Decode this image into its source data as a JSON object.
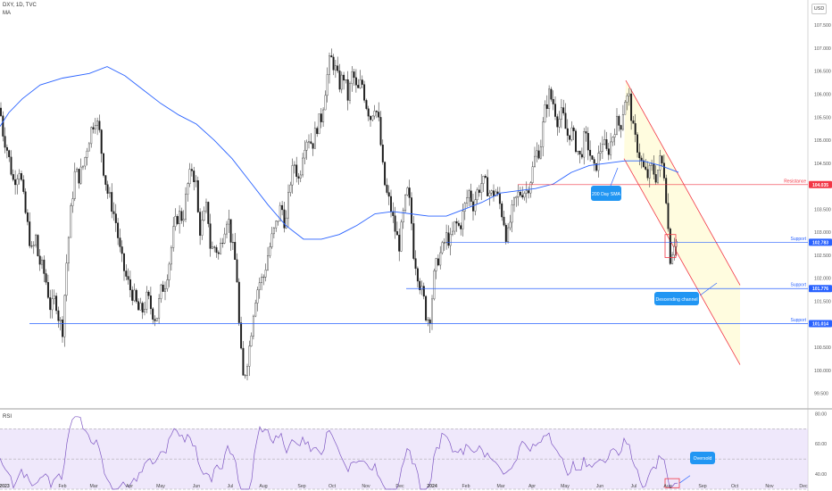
{
  "header": {
    "symbol": "DXY, 1D, TVC",
    "indicator": "MA"
  },
  "currency": "USD",
  "rsi_label": "RSI",
  "chart_data": [
    {
      "type": "candlestick",
      "title": "DXY, 1D, TVC",
      "y_ticks": [
        "107.500",
        "107.000",
        "106.500",
        "106.000",
        "105.500",
        "105.000",
        "104.500",
        "104.000",
        "103.500",
        "103.000",
        "102.500",
        "102.000",
        "101.500",
        "101.000",
        "100.500",
        "100.000",
        "99.500"
      ],
      "ylim": [
        99.2,
        107.95
      ],
      "x_ticks": [
        "2023",
        "Feb",
        "Mar",
        "Apr",
        "May",
        "Jun",
        "Jul",
        "Aug",
        "Sep",
        "Oct",
        "Nov",
        "Dec",
        "2024",
        "Feb",
        "Mar",
        "Apr",
        "May",
        "Jun",
        "Jul",
        "Aug",
        "Sep",
        "Oct",
        "Nov",
        "Dec"
      ],
      "close_path": [
        [
          0,
          105.7
        ],
        [
          3,
          105.2
        ],
        [
          8,
          104.8
        ],
        [
          15,
          104.1
        ],
        [
          22,
          104.4
        ],
        [
          27,
          103.6
        ],
        [
          32,
          103.0
        ],
        [
          36,
          102.5
        ],
        [
          40,
          102.9
        ],
        [
          43,
          102.4
        ],
        [
          48,
          102.2
        ],
        [
          52,
          101.9
        ],
        [
          57,
          101.3
        ],
        [
          62,
          101.6
        ],
        [
          66,
          101.1
        ],
        [
          70,
          100.9
        ],
        [
          74,
          102.2
        ],
        [
          79,
          103.4
        ],
        [
          84,
          104.3
        ],
        [
          89,
          104.2
        ],
        [
          94,
          104.5
        ],
        [
          98,
          104.9
        ],
        [
          103,
          105.3
        ],
        [
          107,
          105.5
        ],
        [
          112,
          105.1
        ],
        [
          115,
          104.5
        ],
        [
          120,
          103.9
        ],
        [
          125,
          103.6
        ],
        [
          130,
          103.2
        ],
        [
          135,
          102.5
        ],
        [
          140,
          102.1
        ],
        [
          145,
          101.8
        ],
        [
          150,
          101.6
        ],
        [
          155,
          101.3
        ],
        [
          160,
          101.3
        ],
        [
          165,
          101.6
        ],
        [
          170,
          101.3
        ],
        [
          175,
          101.1
        ],
        [
          180,
          101.7
        ],
        [
          185,
          101.9
        ],
        [
          190,
          102.4
        ],
        [
          195,
          103.1
        ],
        [
          200,
          103.4
        ],
        [
          205,
          103.3
        ],
        [
          210,
          104.0
        ],
        [
          215,
          104.4
        ],
        [
          220,
          104.0
        ],
        [
          223,
          103.0
        ],
        [
          227,
          103.2
        ],
        [
          232,
          103.6
        ],
        [
          236,
          102.6
        ],
        [
          241,
          102.7
        ],
        [
          245,
          102.5
        ],
        [
          250,
          103.0
        ],
        [
          255,
          103.4
        ],
        [
          260,
          102.7
        ],
        [
          265,
          102.2
        ],
        [
          268,
          100.9
        ],
        [
          272,
          99.8
        ],
        [
          275,
          100.0
        ],
        [
          280,
          100.6
        ],
        [
          285,
          101.5
        ],
        [
          290,
          101.9
        ],
        [
          295,
          102.0
        ],
        [
          300,
          102.5
        ],
        [
          305,
          102.9
        ],
        [
          310,
          103.2
        ],
        [
          315,
          103.6
        ],
        [
          320,
          103.1
        ],
        [
          325,
          104.1
        ],
        [
          330,
          104.5
        ],
        [
          335,
          104.1
        ],
        [
          340,
          104.9
        ],
        [
          345,
          105.1
        ],
        [
          350,
          104.9
        ],
        [
          355,
          105.3
        ],
        [
          360,
          105.5
        ],
        [
          365,
          106.2
        ],
        [
          370,
          106.8
        ],
        [
          375,
          106.6
        ],
        [
          380,
          106.2
        ],
        [
          385,
          106.4
        ],
        [
          390,
          105.9
        ],
        [
          395,
          106.5
        ],
        [
          400,
          106.0
        ],
        [
          405,
          106.3
        ],
        [
          410,
          105.8
        ],
        [
          415,
          105.5
        ],
        [
          420,
          105.8
        ],
        [
          425,
          105.3
        ],
        [
          428,
          104.5
        ],
        [
          432,
          103.9
        ],
        [
          437,
          103.6
        ],
        [
          442,
          103.1
        ],
        [
          447,
          102.7
        ],
        [
          452,
          103.4
        ],
        [
          456,
          103.9
        ],
        [
          460,
          103.5
        ],
        [
          463,
          102.6
        ],
        [
          467,
          102.2
        ],
        [
          471,
          101.8
        ],
        [
          475,
          101.5
        ],
        [
          478,
          101.1
        ],
        [
          482,
          101.2
        ],
        [
          486,
          102.0
        ],
        [
          490,
          102.4
        ],
        [
          495,
          102.6
        ],
        [
          500,
          102.9
        ],
        [
          505,
          102.8
        ],
        [
          510,
          103.2
        ],
        [
          515,
          103.1
        ],
        [
          520,
          103.5
        ],
        [
          525,
          103.9
        ],
        [
          530,
          103.6
        ],
        [
          535,
          103.9
        ],
        [
          540,
          104.1
        ],
        [
          545,
          104.0
        ],
        [
          550,
          103.8
        ],
        [
          555,
          103.9
        ],
        [
          560,
          103.6
        ],
        [
          565,
          103.2
        ],
        [
          568,
          102.8
        ],
        [
          572,
          103.3
        ],
        [
          576,
          103.6
        ],
        [
          580,
          103.8
        ],
        [
          585,
          103.9
        ],
        [
          590,
          103.9
        ],
        [
          595,
          104.2
        ],
        [
          600,
          104.7
        ],
        [
          605,
          104.8
        ],
        [
          610,
          105.6
        ],
        [
          615,
          106.0
        ],
        [
          620,
          105.8
        ],
        [
          625,
          105.4
        ],
        [
          630,
          105.6
        ],
        [
          635,
          105.1
        ],
        [
          640,
          105.2
        ],
        [
          645,
          104.9
        ],
        [
          650,
          104.6
        ],
        [
          655,
          105.1
        ],
        [
          660,
          104.8
        ],
        [
          665,
          104.3
        ],
        [
          670,
          104.6
        ],
        [
          675,
          105.0
        ],
        [
          680,
          104.7
        ],
        [
          685,
          105.0
        ],
        [
          690,
          105.4
        ],
        [
          695,
          105.3
        ],
        [
          700,
          105.9
        ],
        [
          705,
          105.9
        ],
        [
          710,
          105.1
        ],
        [
          715,
          104.8
        ],
        [
          720,
          104.4
        ],
        [
          725,
          104.2
        ],
        [
          730,
          104.4
        ],
        [
          735,
          104.2
        ],
        [
          740,
          104.6
        ],
        [
          745,
          104.2
        ],
        [
          748,
          103.2
        ],
        [
          751,
          102.4
        ],
        [
          755,
          102.8
        ],
        [
          759,
          102.8
        ]
      ],
      "sma_path": [
        [
          0,
          105.3
        ],
        [
          10,
          105.6
        ],
        [
          25,
          105.9
        ],
        [
          45,
          106.2
        ],
        [
          70,
          106.35
        ],
        [
          100,
          106.45
        ],
        [
          120,
          106.6
        ],
        [
          140,
          106.4
        ],
        [
          160,
          106.1
        ],
        [
          180,
          105.8
        ],
        [
          200,
          105.55
        ],
        [
          220,
          105.35
        ],
        [
          240,
          105.0
        ],
        [
          260,
          104.6
        ],
        [
          280,
          104.1
        ],
        [
          300,
          103.6
        ],
        [
          320,
          103.15
        ],
        [
          340,
          102.85
        ],
        [
          360,
          102.85
        ],
        [
          380,
          102.95
        ],
        [
          400,
          103.15
        ],
        [
          420,
          103.4
        ],
        [
          440,
          103.45
        ],
        [
          460,
          103.4
        ],
        [
          480,
          103.35
        ],
        [
          500,
          103.35
        ],
        [
          520,
          103.5
        ],
        [
          540,
          103.65
        ],
        [
          560,
          103.85
        ],
        [
          580,
          103.9
        ],
        [
          600,
          103.95
        ],
        [
          620,
          104.05
        ],
        [
          640,
          104.3
        ],
        [
          660,
          104.45
        ],
        [
          680,
          104.5
        ],
        [
          700,
          104.55
        ],
        [
          720,
          104.55
        ],
        [
          740,
          104.45
        ],
        [
          760,
          104.3
        ]
      ],
      "levels": [
        {
          "name": "Resistance",
          "value": 104.035,
          "tag": "104.035",
          "color": "#f23645",
          "x_from": 580
        },
        {
          "name": "Support",
          "value": 102.783,
          "tag": "102.783",
          "color": "#2962ff",
          "x_from": 500
        },
        {
          "name": "Support",
          "value": 101.776,
          "tag": "101.776",
          "color": "#2962ff",
          "x_from": 455
        },
        {
          "name": "Support",
          "value": 101.014,
          "tag": "101.014",
          "color": "#2962ff",
          "x_from": 33
        }
      ],
      "channel": {
        "upper": [
          [
            701,
            106.3
          ],
          [
            829,
            101.85
          ]
        ],
        "lower": [
          [
            699,
            104.6
          ],
          [
            829,
            100.12
          ]
        ]
      },
      "annotations": [
        "200 Day SMA",
        "Descending channel"
      ]
    },
    {
      "type": "line",
      "title": "RSI",
      "y_ticks": [
        "80.00",
        "60.00",
        "40.00"
      ],
      "ylim": [
        30,
        82
      ],
      "upper_band": 70,
      "lower_band": 30,
      "annotations": [
        "Oversold"
      ]
    }
  ]
}
